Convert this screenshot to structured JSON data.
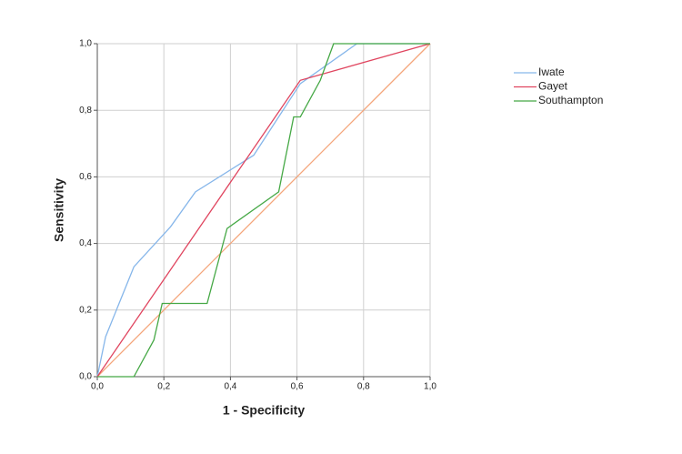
{
  "chart_data": {
    "type": "line",
    "x_label": "1 - Specificity",
    "y_label": "Sensitivity",
    "xlim": [
      0,
      1
    ],
    "ylim": [
      0,
      1
    ],
    "xticks": [
      {
        "value": 0,
        "label": "0,0"
      },
      {
        "value": 0.2,
        "label": "0,2"
      },
      {
        "value": 0.4,
        "label": "0,4"
      },
      {
        "value": 0.6,
        "label": "0,6"
      },
      {
        "value": 0.8,
        "label": "0,8"
      },
      {
        "value": 1,
        "label": "1,0"
      }
    ],
    "yticks": [
      {
        "value": 0,
        "label": "0,0"
      },
      {
        "value": 0.2,
        "label": "0,2"
      },
      {
        "value": 0.4,
        "label": "0,4"
      },
      {
        "value": 0.6,
        "label": "0,6"
      },
      {
        "value": 0.8,
        "label": "0,8"
      },
      {
        "value": 1,
        "label": "1,0"
      }
    ],
    "grid": true,
    "legend": "right",
    "series": [
      {
        "name": "Iwate",
        "color": "#86b6ea",
        "x": [
          0,
          0.025,
          0.11,
          0.22,
          0.295,
          0.47,
          0.61,
          0.78,
          1
        ],
        "values": [
          0,
          0.12,
          0.33,
          0.45,
          0.555,
          0.665,
          0.88,
          1,
          1
        ]
      },
      {
        "name": "Gayet",
        "color": "#e0455f",
        "x": [
          0,
          0.61,
          1
        ],
        "values": [
          0,
          0.89,
          1
        ]
      },
      {
        "name": "Southampton",
        "color": "#45a845",
        "x": [
          0,
          0.11,
          0.17,
          0.195,
          0.33,
          0.39,
          0.545,
          0.59,
          0.61,
          0.67,
          0.71,
          1
        ],
        "values": [
          0,
          0,
          0.11,
          0.22,
          0.22,
          0.445,
          0.555,
          0.78,
          0.78,
          0.89,
          1,
          1
        ]
      }
    ],
    "reference_line": {
      "color": "#f4a57a",
      "x": [
        0,
        1
      ],
      "values": [
        0,
        1
      ]
    }
  }
}
